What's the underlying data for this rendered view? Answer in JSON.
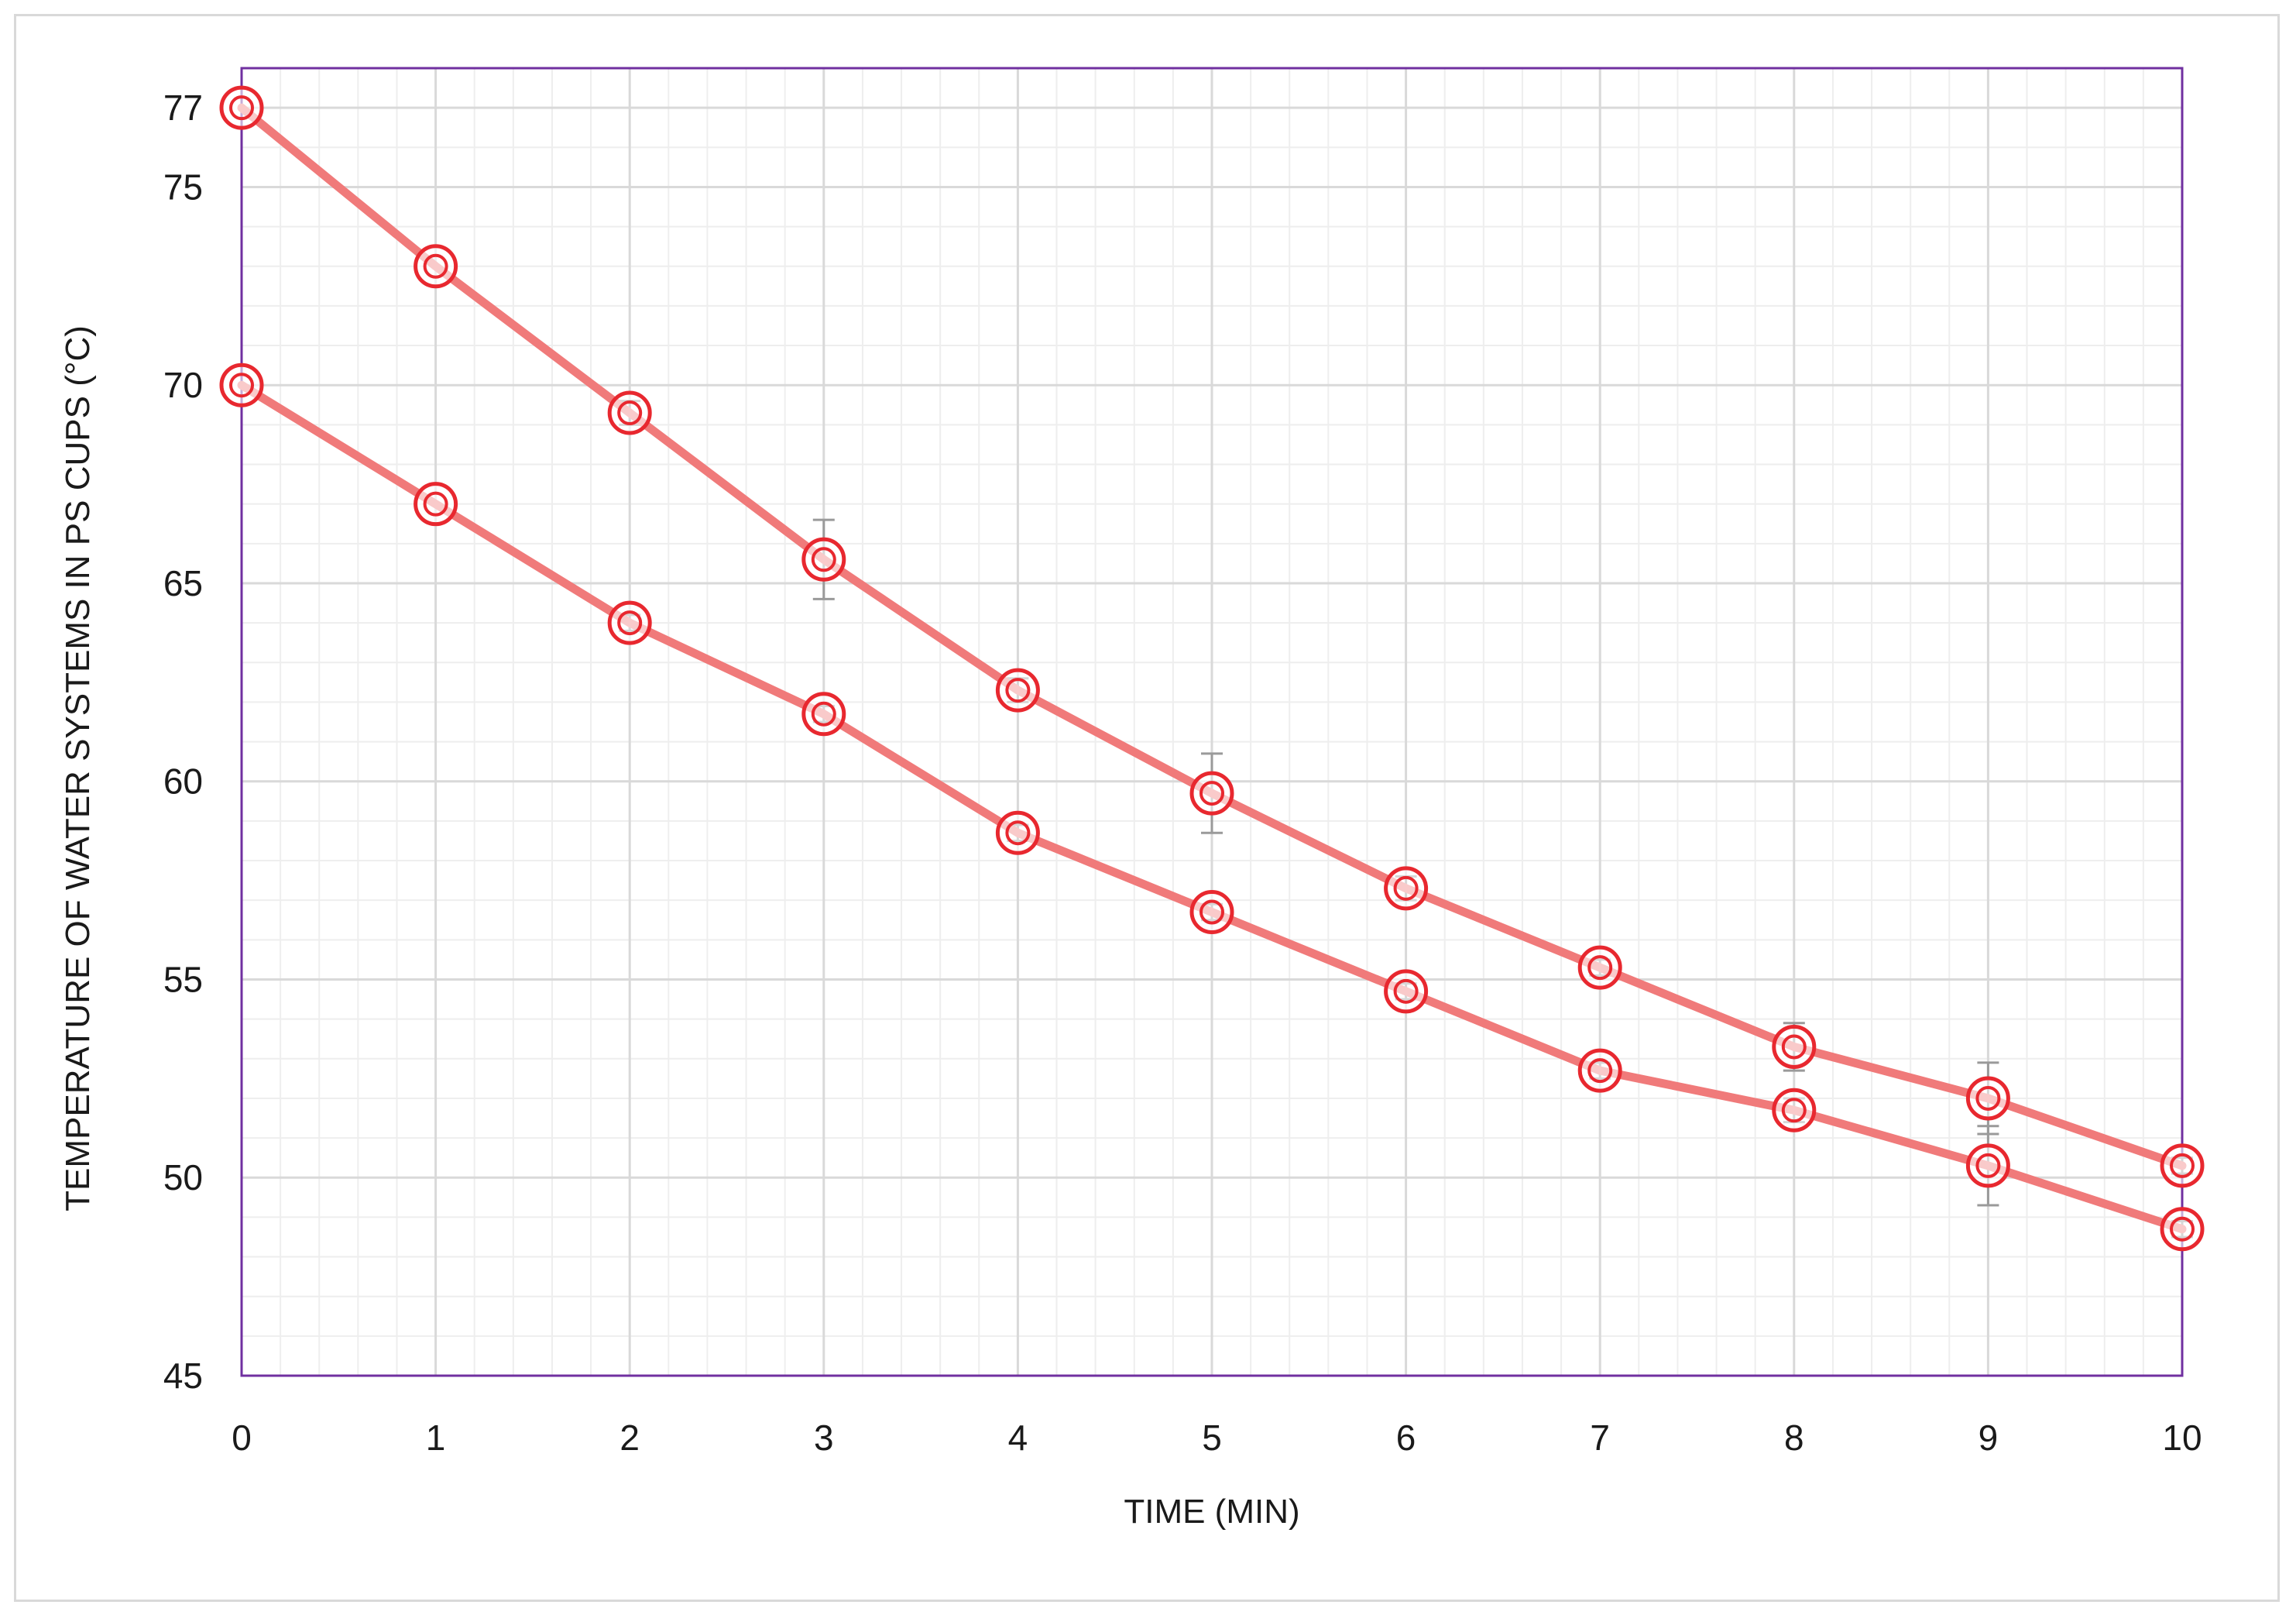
{
  "chart_data": {
    "type": "line",
    "xlabel": "TIME (MIN)",
    "ylabel": "TEMPERATURE OF WATER SYSTEMS IN PS CUPS (°C)",
    "x": [
      0,
      1,
      2,
      3,
      4,
      5,
      6,
      7,
      8,
      9,
      10
    ],
    "x_ticks": [
      "0",
      "1",
      "2",
      "3",
      "4",
      "5",
      "6",
      "7",
      "8",
      "9",
      "10"
    ],
    "y_ticks": [
      {
        "value": 45,
        "label": "45"
      },
      {
        "value": 50,
        "label": "50"
      },
      {
        "value": 55,
        "label": "55"
      },
      {
        "value": 60,
        "label": "60"
      },
      {
        "value": 65,
        "label": "65"
      },
      {
        "value": 70,
        "label": "70"
      },
      {
        "value": 75,
        "label": "75"
      },
      {
        "value": 77,
        "label": "77"
      }
    ],
    "xlim": [
      0,
      10
    ],
    "ylim": [
      45,
      78
    ],
    "grid": true,
    "colors": {
      "line": "#f07a7a",
      "marker": "#e8282f",
      "error_bar": "#9a9a9a",
      "plot_border": "#7030a0",
      "grid": "#d9d9d9",
      "minor_grid": "#eeeeee"
    },
    "series": [
      {
        "values": [
          77.0,
          73.0,
          69.3,
          65.6,
          62.3,
          59.7,
          57.3,
          55.3,
          53.3,
          52.0,
          50.3
        ],
        "error": [
          0.1,
          0.1,
          0.3,
          1.0,
          0.3,
          1.0,
          0.3,
          0.2,
          0.6,
          0.9,
          0.2
        ]
      },
      {
        "values": [
          70.0,
          67.0,
          64.0,
          61.7,
          58.7,
          56.7,
          54.7,
          52.7,
          51.7,
          50.3,
          48.7
        ],
        "error": [
          0.1,
          0.1,
          0.2,
          0.2,
          0.2,
          0.2,
          0.2,
          0.2,
          0.3,
          1.0,
          0.2
        ]
      }
    ]
  }
}
